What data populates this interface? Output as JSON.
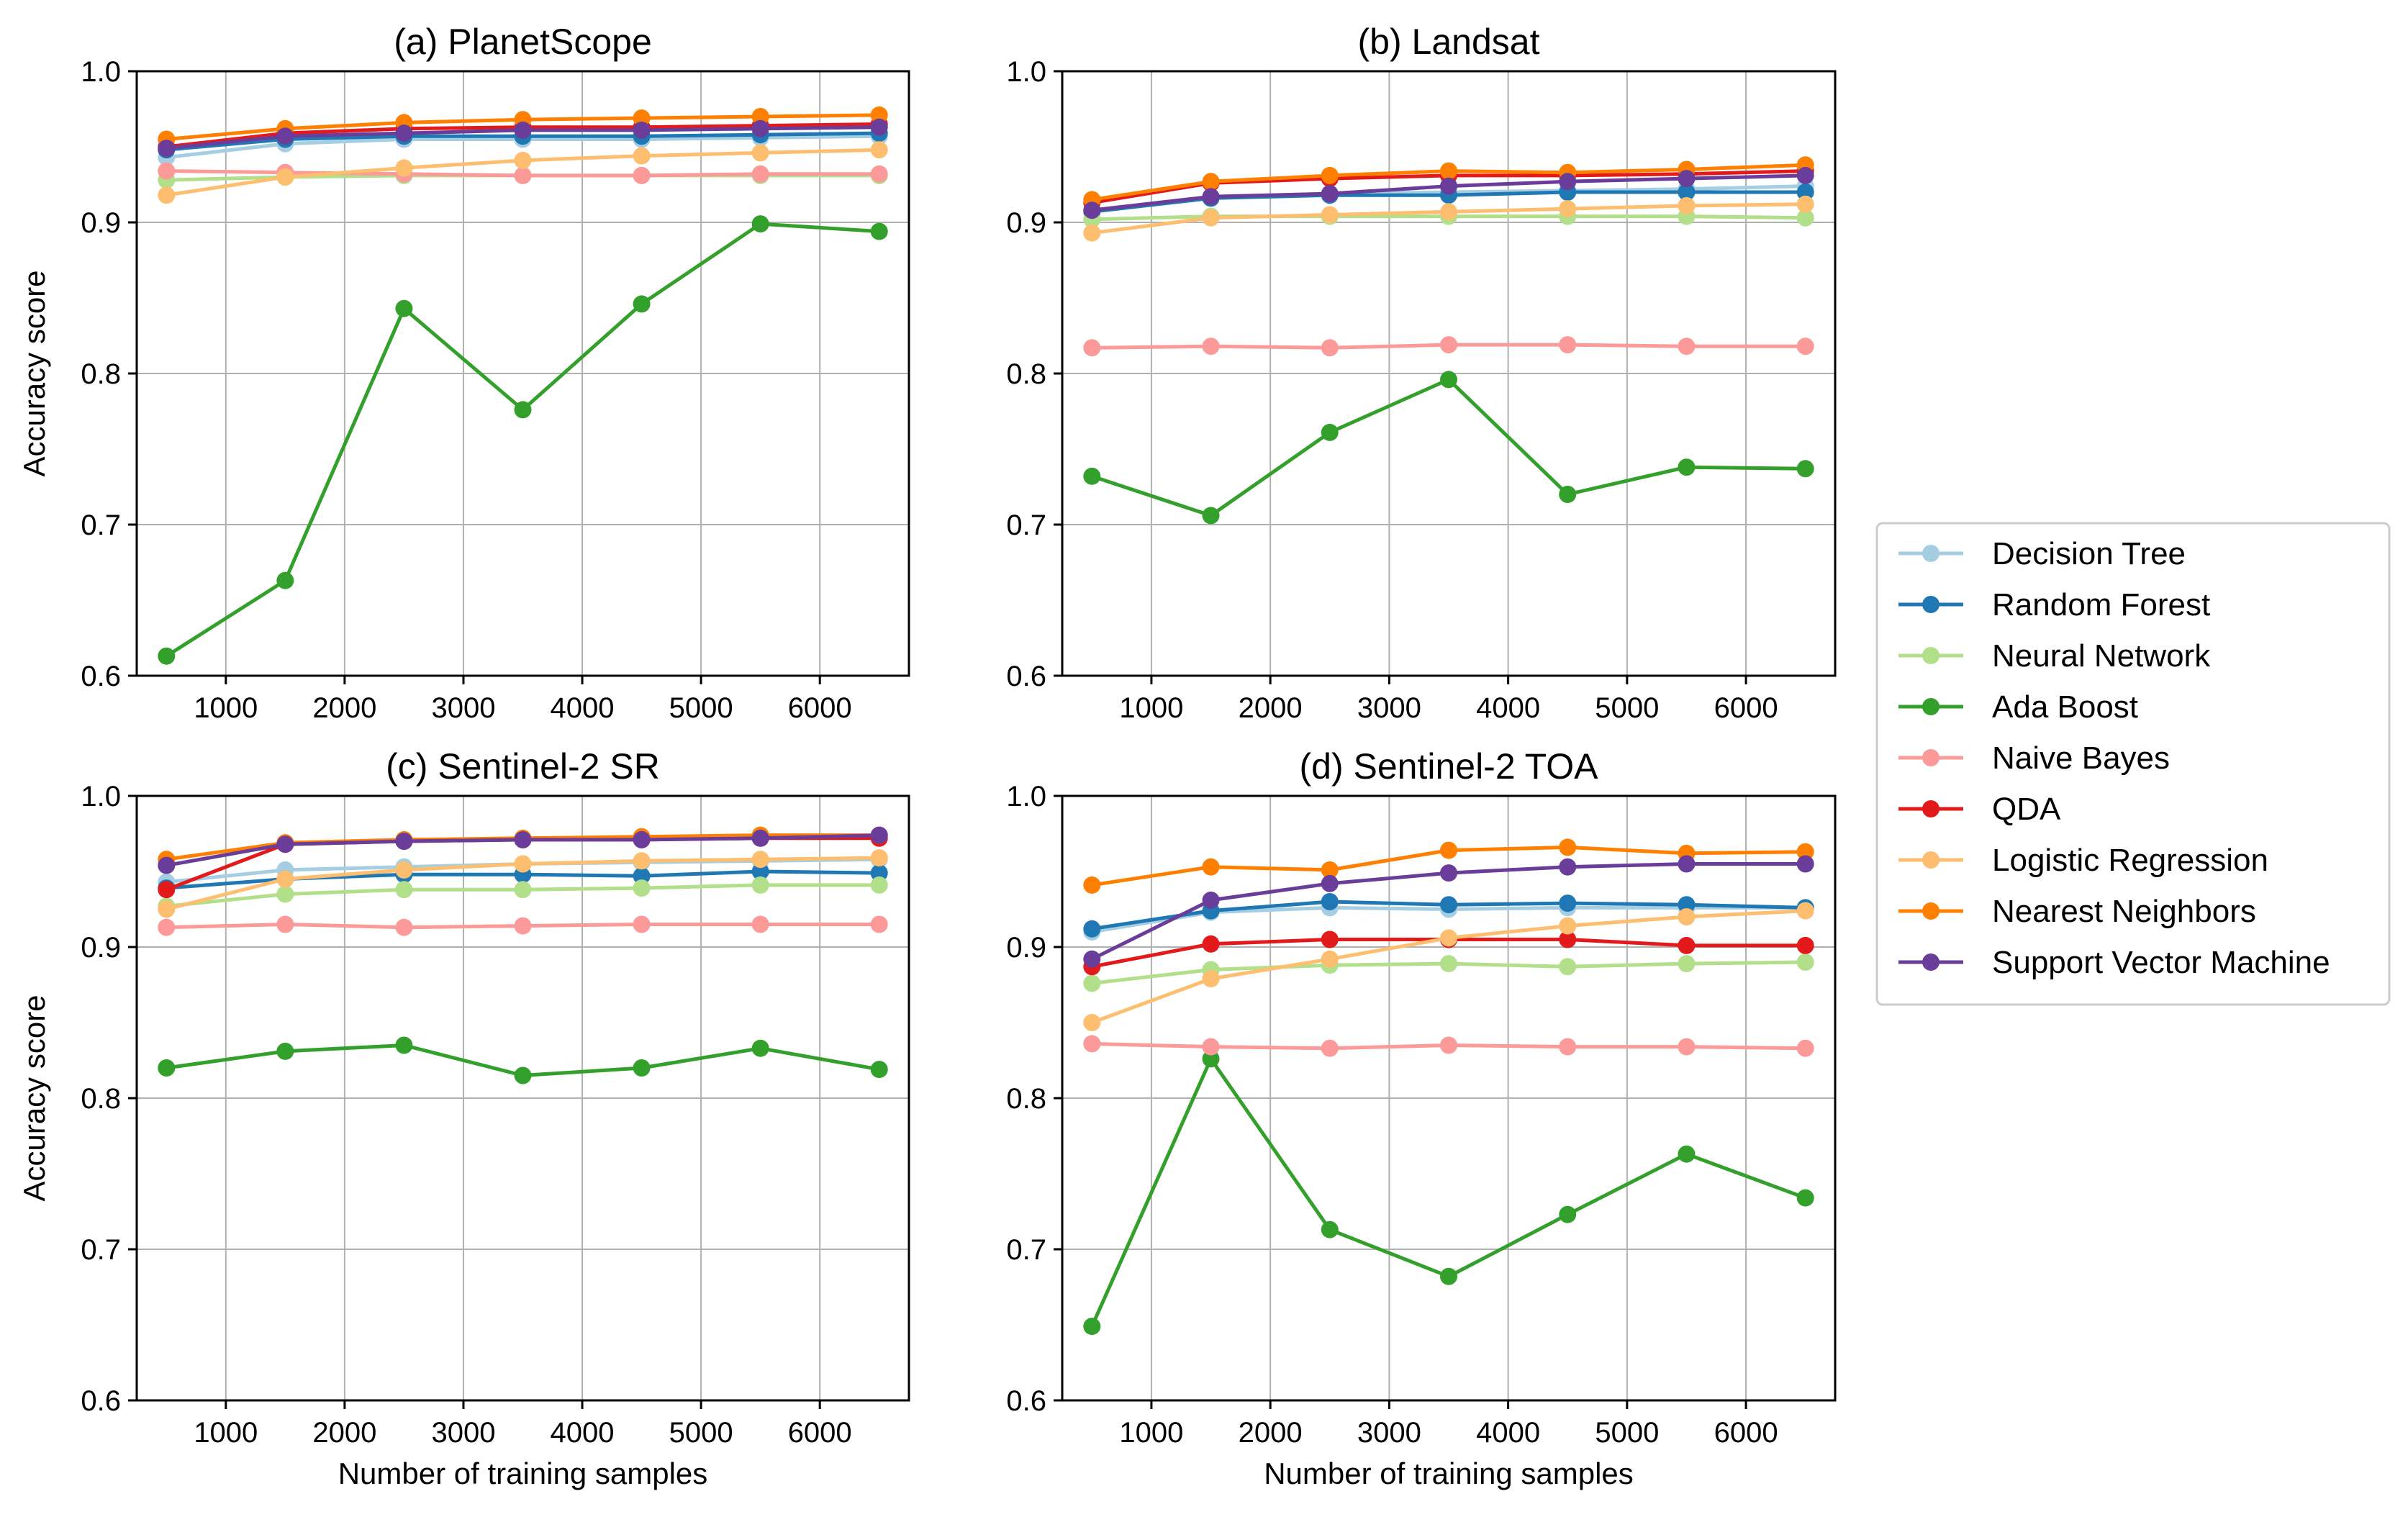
{
  "figure": {
    "series_styles": [
      {
        "name": "Decision Tree",
        "color": "#a6cee3"
      },
      {
        "name": "Random Forest",
        "color": "#1f78b4"
      },
      {
        "name": "Neural Network",
        "color": "#b2df8a"
      },
      {
        "name": "Ada Boost",
        "color": "#33a02c"
      },
      {
        "name": "Naive Bayes",
        "color": "#fb9a99"
      },
      {
        "name": "QDA",
        "color": "#e31a1c"
      },
      {
        "name": "Logistic Regression",
        "color": "#fdbf6f"
      },
      {
        "name": "Nearest Neighbors",
        "color": "#ff7f00"
      },
      {
        "name": "Support Vector Machine",
        "color": "#6a3d9a"
      }
    ],
    "legend_position": "right"
  },
  "chart_data": [
    {
      "type": "line",
      "title": "(a) PlanetScope",
      "ylabel": "Accuracy score",
      "xlabel": "",
      "x": [
        500,
        1500,
        2500,
        3500,
        4500,
        5500,
        6500
      ],
      "xticks": [
        1000,
        2000,
        3000,
        4000,
        5000,
        6000
      ],
      "yticks": [
        "0.6",
        "0.7",
        "0.8",
        "0.9",
        "1.0"
      ],
      "xlim": [
        250,
        6750
      ],
      "ylim": [
        0.6,
        1.0
      ],
      "grid": true,
      "series": [
        {
          "name": "Decision Tree",
          "values": [
            0.943,
            0.952,
            0.955,
            0.955,
            0.955,
            0.956,
            0.957
          ]
        },
        {
          "name": "Random Forest",
          "values": [
            0.948,
            0.955,
            0.957,
            0.957,
            0.957,
            0.958,
            0.959
          ]
        },
        {
          "name": "Neural Network",
          "values": [
            0.928,
            0.93,
            0.931,
            0.931,
            0.931,
            0.931,
            0.931
          ]
        },
        {
          "name": "Ada Boost",
          "values": [
            0.613,
            0.663,
            0.843,
            0.776,
            0.846,
            0.899,
            0.894
          ]
        },
        {
          "name": "Naive Bayes",
          "values": [
            0.934,
            0.933,
            0.932,
            0.931,
            0.931,
            0.932,
            0.932
          ]
        },
        {
          "name": "QDA",
          "values": [
            0.95,
            0.959,
            0.962,
            0.963,
            0.963,
            0.964,
            0.965
          ]
        },
        {
          "name": "Logistic Regression",
          "values": [
            0.918,
            0.93,
            0.936,
            0.941,
            0.944,
            0.946,
            0.948
          ]
        },
        {
          "name": "Nearest Neighbors",
          "values": [
            0.955,
            0.962,
            0.966,
            0.968,
            0.969,
            0.97,
            0.971
          ]
        },
        {
          "name": "Support Vector Machine",
          "values": [
            0.949,
            0.957,
            0.959,
            0.961,
            0.961,
            0.962,
            0.963
          ]
        }
      ]
    },
    {
      "type": "line",
      "title": "(b) Landsat",
      "ylabel": "",
      "xlabel": "",
      "x": [
        500,
        1500,
        2500,
        3500,
        4500,
        5500,
        6500
      ],
      "xticks": [
        1000,
        2000,
        3000,
        4000,
        5000,
        6000
      ],
      "yticks": [
        "0.6",
        "0.7",
        "0.8",
        "0.9",
        "1.0"
      ],
      "xlim": [
        250,
        6750
      ],
      "ylim": [
        0.6,
        1.0
      ],
      "grid": true,
      "series": [
        {
          "name": "Decision Tree",
          "values": [
            0.908,
            0.917,
            0.919,
            0.92,
            0.921,
            0.922,
            0.924
          ]
        },
        {
          "name": "Random Forest",
          "values": [
            0.907,
            0.916,
            0.918,
            0.918,
            0.92,
            0.92,
            0.92
          ]
        },
        {
          "name": "Neural Network",
          "values": [
            0.902,
            0.904,
            0.904,
            0.904,
            0.904,
            0.904,
            0.903
          ]
        },
        {
          "name": "Ada Boost",
          "values": [
            0.732,
            0.706,
            0.761,
            0.796,
            0.72,
            0.738,
            0.737
          ]
        },
        {
          "name": "Naive Bayes",
          "values": [
            0.817,
            0.818,
            0.817,
            0.819,
            0.819,
            0.818,
            0.818
          ]
        },
        {
          "name": "QDA",
          "values": [
            0.913,
            0.926,
            0.929,
            0.931,
            0.931,
            0.932,
            0.934
          ]
        },
        {
          "name": "Logistic Regression",
          "values": [
            0.893,
            0.903,
            0.905,
            0.907,
            0.909,
            0.911,
            0.912
          ]
        },
        {
          "name": "Nearest Neighbors",
          "values": [
            0.915,
            0.927,
            0.931,
            0.934,
            0.933,
            0.935,
            0.938
          ]
        },
        {
          "name": "Support Vector Machine",
          "values": [
            0.908,
            0.917,
            0.919,
            0.924,
            0.927,
            0.929,
            0.931
          ]
        }
      ]
    },
    {
      "type": "line",
      "title": "(c) Sentinel-2 SR",
      "ylabel": "Accuracy score",
      "xlabel": "Number of training samples",
      "x": [
        500,
        1500,
        2500,
        3500,
        4500,
        5500,
        6500
      ],
      "xticks": [
        1000,
        2000,
        3000,
        4000,
        5000,
        6000
      ],
      "yticks": [
        "0.6",
        "0.7",
        "0.8",
        "0.9",
        "1.0"
      ],
      "xlim": [
        250,
        6750
      ],
      "ylim": [
        0.6,
        1.0
      ],
      "grid": true,
      "series": [
        {
          "name": "Decision Tree",
          "values": [
            0.943,
            0.951,
            0.953,
            0.955,
            0.956,
            0.957,
            0.958
          ]
        },
        {
          "name": "Random Forest",
          "values": [
            0.939,
            0.945,
            0.948,
            0.948,
            0.947,
            0.95,
            0.949
          ]
        },
        {
          "name": "Neural Network",
          "values": [
            0.927,
            0.935,
            0.938,
            0.938,
            0.939,
            0.941,
            0.941
          ]
        },
        {
          "name": "Ada Boost",
          "values": [
            0.82,
            0.831,
            0.835,
            0.815,
            0.82,
            0.833,
            0.819
          ]
        },
        {
          "name": "Naive Bayes",
          "values": [
            0.913,
            0.915,
            0.913,
            0.914,
            0.915,
            0.915,
            0.915
          ]
        },
        {
          "name": "QDA",
          "values": [
            0.938,
            0.968,
            0.97,
            0.971,
            0.971,
            0.972,
            0.972
          ]
        },
        {
          "name": "Logistic Regression",
          "values": [
            0.925,
            0.945,
            0.951,
            0.955,
            0.957,
            0.958,
            0.959
          ]
        },
        {
          "name": "Nearest Neighbors",
          "values": [
            0.958,
            0.969,
            0.971,
            0.972,
            0.973,
            0.974,
            0.974
          ]
        },
        {
          "name": "Support Vector Machine",
          "values": [
            0.954,
            0.968,
            0.97,
            0.971,
            0.971,
            0.972,
            0.974
          ]
        }
      ]
    },
    {
      "type": "line",
      "title": "(d) Sentinel-2 TOA",
      "ylabel": "",
      "xlabel": "Number of training samples",
      "x": [
        500,
        1500,
        2500,
        3500,
        4500,
        5500,
        6500
      ],
      "xticks": [
        1000,
        2000,
        3000,
        4000,
        5000,
        6000
      ],
      "yticks": [
        "0.6",
        "0.7",
        "0.8",
        "0.9",
        "1.0"
      ],
      "xlim": [
        250,
        6750
      ],
      "ylim": [
        0.6,
        1.0
      ],
      "grid": true,
      "series": [
        {
          "name": "Decision Tree",
          "values": [
            0.91,
            0.923,
            0.926,
            0.925,
            0.926,
            0.926,
            0.926
          ]
        },
        {
          "name": "Random Forest",
          "values": [
            0.912,
            0.924,
            0.93,
            0.928,
            0.929,
            0.928,
            0.926
          ]
        },
        {
          "name": "Neural Network",
          "values": [
            0.876,
            0.885,
            0.888,
            0.889,
            0.887,
            0.889,
            0.89
          ]
        },
        {
          "name": "Ada Boost",
          "values": [
            0.649,
            0.826,
            0.713,
            0.682,
            0.723,
            0.763,
            0.734
          ]
        },
        {
          "name": "Naive Bayes",
          "values": [
            0.836,
            0.834,
            0.833,
            0.835,
            0.834,
            0.834,
            0.833
          ]
        },
        {
          "name": "QDA",
          "values": [
            0.887,
            0.902,
            0.905,
            0.905,
            0.905,
            0.901,
            0.901
          ]
        },
        {
          "name": "Logistic Regression",
          "values": [
            0.85,
            0.879,
            0.892,
            0.906,
            0.914,
            0.92,
            0.924
          ]
        },
        {
          "name": "Nearest Neighbors",
          "values": [
            0.941,
            0.953,
            0.951,
            0.964,
            0.966,
            0.962,
            0.963
          ]
        },
        {
          "name": "Support Vector Machine",
          "values": [
            0.892,
            0.931,
            0.942,
            0.949,
            0.953,
            0.955,
            0.955
          ]
        }
      ]
    }
  ]
}
